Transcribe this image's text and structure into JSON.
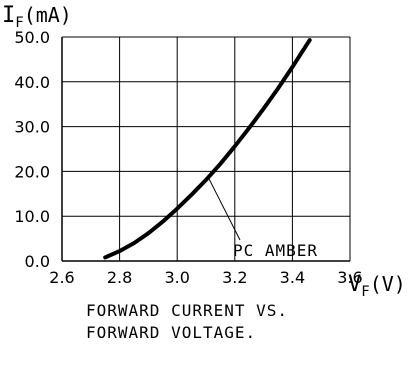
{
  "chart_data": {
    "type": "line",
    "title": "",
    "ylabel_main": "I",
    "ylabel_sub": "F",
    "ylabel_unit": "(mA)",
    "xlabel_main": "V",
    "xlabel_sub": "F",
    "xlabel_unit": "(V)",
    "xlim": [
      2.6,
      3.6
    ],
    "ylim": [
      0,
      50
    ],
    "x_ticks": [
      "2.6",
      "2.8",
      "3.0",
      "3.2",
      "3.4",
      "3.6"
    ],
    "y_ticks": [
      "0.0",
      "10.0",
      "20.0",
      "30.0",
      "40.0",
      "50.0"
    ],
    "grid": true,
    "series": [
      {
        "name": "PC AMBER",
        "x": [
          2.75,
          2.8,
          2.85,
          2.9,
          2.95,
          3.0,
          3.05,
          3.1,
          3.15,
          3.2,
          3.25,
          3.3,
          3.35,
          3.4,
          3.46
        ],
        "y": [
          0.8,
          2.2,
          4.0,
          6.2,
          8.8,
          11.7,
          14.8,
          18.1,
          21.7,
          25.6,
          29.7,
          34.0,
          38.5,
          43.3,
          49.3
        ]
      }
    ],
    "annotations": [
      {
        "text": "PC AMBER",
        "points_to": {
          "x": 3.11,
          "y": 18.4
        }
      }
    ],
    "caption": [
      "FORWARD CURRENT VS.",
      "FORWARD VOLTAGE."
    ]
  }
}
